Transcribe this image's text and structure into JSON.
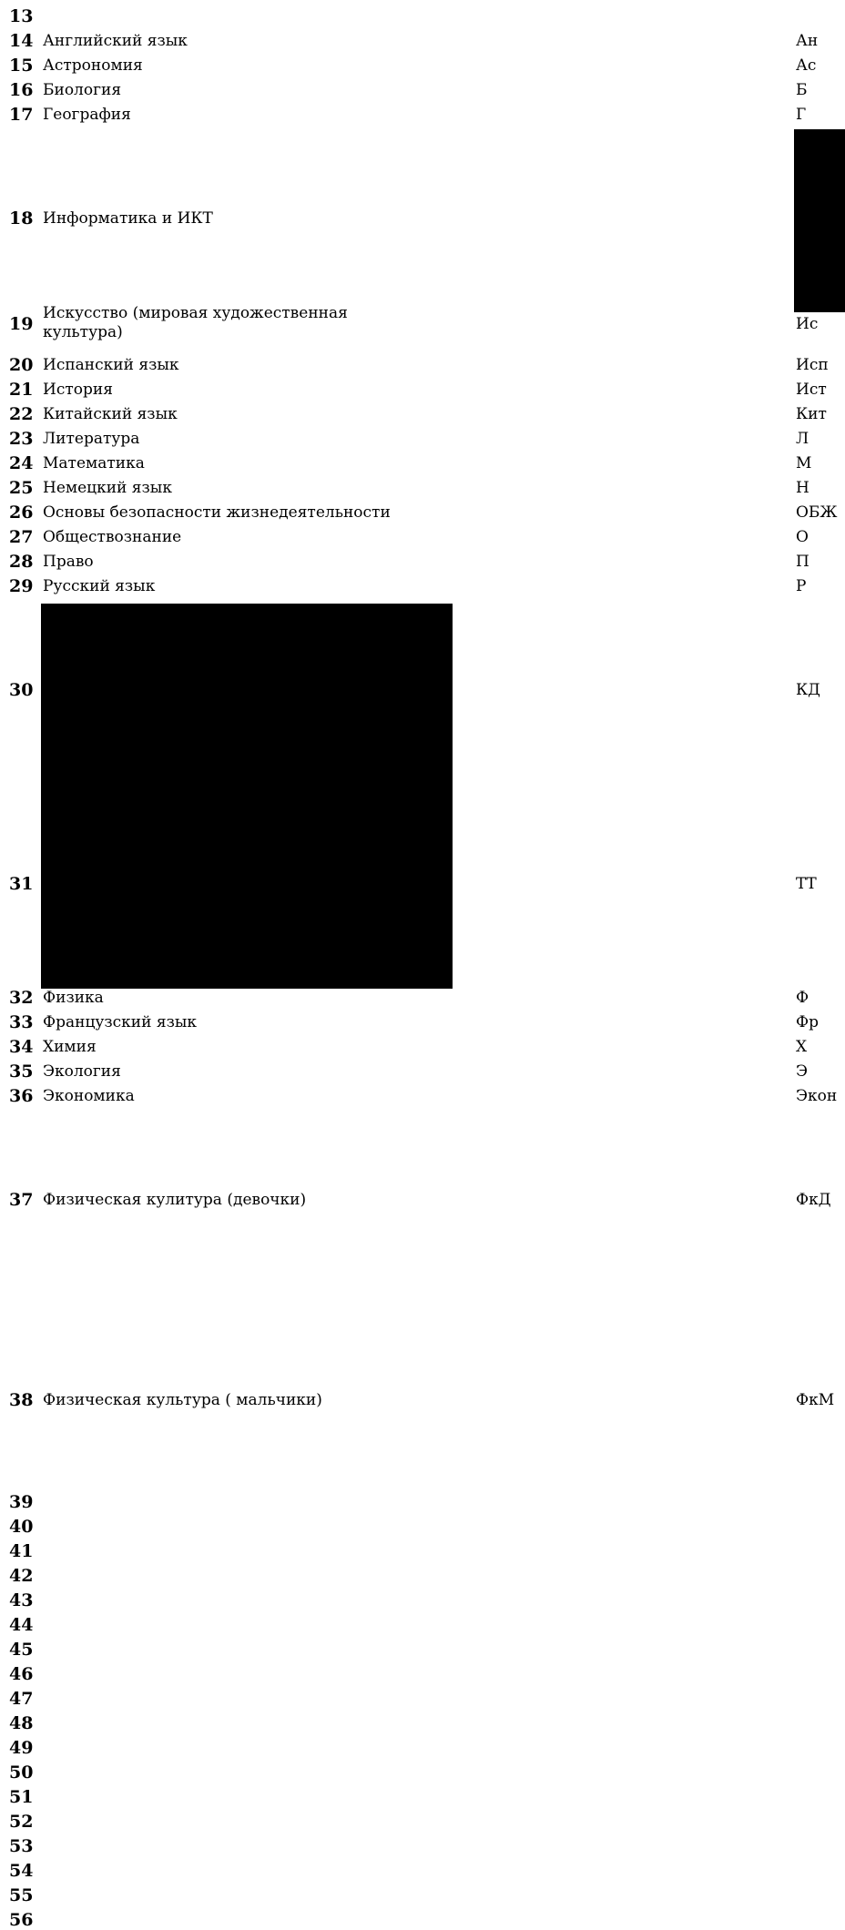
{
  "rows": [
    {
      "n": "13",
      "name": "",
      "abbr": ""
    },
    {
      "n": "14",
      "name": "Английский язык",
      "abbr": "Ан"
    },
    {
      "n": "15",
      "name": "Астрономия",
      "abbr": "Ас"
    },
    {
      "n": "16",
      "name": "Биология",
      "abbr": "Б"
    },
    {
      "n": "17",
      "name": "География",
      "abbr": "Г"
    },
    {
      "n": "18",
      "name": "Информатика и ИКТ",
      "abbr": ""
    },
    {
      "n": "19",
      "name": "Искусство (мировая художественная культура)",
      "abbr": "Ис"
    },
    {
      "n": "20",
      "name": "Испанский язык",
      "abbr": "Исп"
    },
    {
      "n": "21",
      "name": "История",
      "abbr": "Ист"
    },
    {
      "n": "22",
      "name": "Китайский язык",
      "abbr": "Кит"
    },
    {
      "n": "23",
      "name": "Литература",
      "abbr": "Л"
    },
    {
      "n": "24",
      "name": "Математика",
      "abbr": "М"
    },
    {
      "n": "25",
      "name": "Немецкий язык",
      "abbr": "Н"
    },
    {
      "n": "26",
      "name": "Основы безопасности жизнедеятельности",
      "abbr": "ОБЖ"
    },
    {
      "n": "27",
      "name": "Обществознание",
      "abbr": "О"
    },
    {
      "n": "28",
      "name": "Право",
      "abbr": "П"
    },
    {
      "n": "29",
      "name": "Русский язык",
      "abbr": "Р"
    },
    {
      "n": "30",
      "name": "",
      "abbr": "КД"
    },
    {
      "n": "31",
      "name": "",
      "abbr": "ТТ"
    },
    {
      "n": "32",
      "name": "Физика",
      "abbr": "Ф"
    },
    {
      "n": "33",
      "name": "Французский язык",
      "abbr": "Фр"
    },
    {
      "n": "34",
      "name": "Химия",
      "abbr": "Х"
    },
    {
      "n": "35",
      "name": "Экология",
      "abbr": "Э"
    },
    {
      "n": "36",
      "name": "Экономика",
      "abbr": "Экон"
    },
    {
      "n": "37",
      "name": "Физическая кулитура (девочки)",
      "abbr": "ФкД"
    },
    {
      "n": "38",
      "name": "Физическая культура ( мальчики)",
      "abbr": "ФкМ"
    },
    {
      "n": "39",
      "name": "",
      "abbr": ""
    },
    {
      "n": "40",
      "name": "",
      "abbr": ""
    },
    {
      "n": "41",
      "name": "",
      "abbr": ""
    },
    {
      "n": "42",
      "name": "",
      "abbr": ""
    },
    {
      "n": "43",
      "name": "",
      "abbr": ""
    },
    {
      "n": "44",
      "name": "",
      "abbr": ""
    },
    {
      "n": "45",
      "name": "",
      "abbr": ""
    },
    {
      "n": "46",
      "name": "",
      "abbr": ""
    },
    {
      "n": "47",
      "name": "",
      "abbr": ""
    },
    {
      "n": "48",
      "name": "",
      "abbr": ""
    },
    {
      "n": "49",
      "name": "",
      "abbr": ""
    },
    {
      "n": "50",
      "name": "",
      "abbr": ""
    },
    {
      "n": "51",
      "name": "",
      "abbr": ""
    },
    {
      "n": "52",
      "name": "",
      "abbr": ""
    },
    {
      "n": "53",
      "name": "",
      "abbr": ""
    },
    {
      "n": "54",
      "name": "",
      "abbr": ""
    },
    {
      "n": "55",
      "name": "",
      "abbr": ""
    },
    {
      "n": "56",
      "name": "",
      "abbr": ""
    }
  ]
}
